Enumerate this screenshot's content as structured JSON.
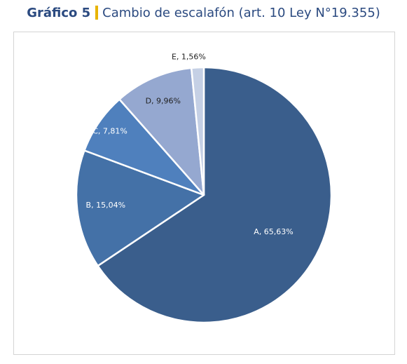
{
  "header": {
    "lead": "Gráfico 5",
    "title": "Cambio de escalafón (art. 10 Ley N°19.355)"
  },
  "chart_data": {
    "type": "pie",
    "title": "Cambio de escalafón (art. 10 Ley N°19.355)",
    "categories": [
      "A",
      "B",
      "C",
      "D",
      "E"
    ],
    "values": [
      65.63,
      15.04,
      7.81,
      9.96,
      1.56
    ],
    "labels": [
      "A, 65,63%",
      "B, 15,04%",
      "C, 7,81%",
      "D, 9,96%",
      "E, 1,56%"
    ],
    "colors": [
      "#3a5e8c",
      "#4471a7",
      "#4f80bd",
      "#95a8d0",
      "#c5d0e5"
    ],
    "legend": "none"
  }
}
